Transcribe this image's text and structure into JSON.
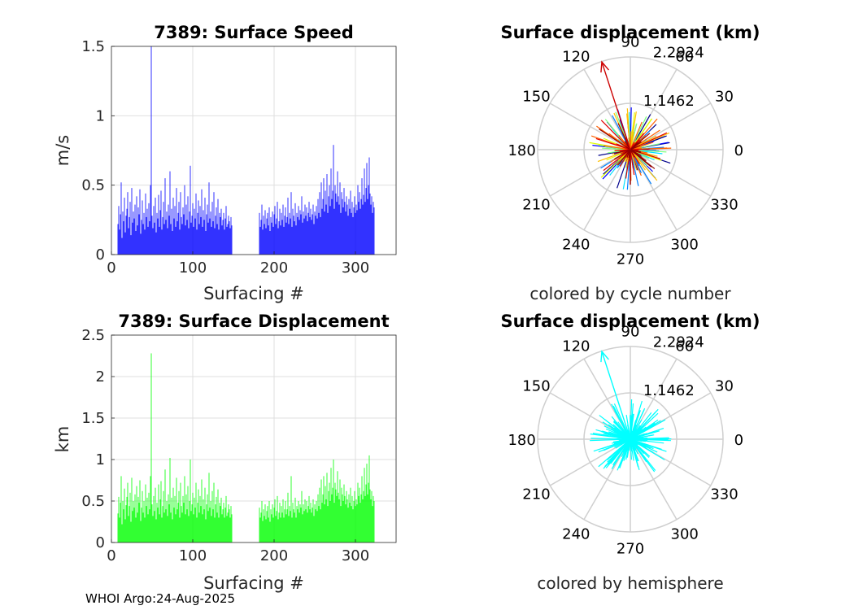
{
  "footer": "WHOI Argo:24-Aug-2025",
  "chart_data": [
    {
      "id": "speed",
      "type": "bar",
      "title": "7389: Surface Speed",
      "xlabel": "Surfacing #",
      "ylabel": "m/s",
      "xlim": [
        0,
        350
      ],
      "ylim": [
        0,
        1.5
      ],
      "xticks": [
        0,
        100,
        200,
        300
      ],
      "yticks": [
        0,
        0.5,
        1,
        1.5
      ],
      "ytick_labels": [
        "0",
        "0.5",
        "1",
        "1.5"
      ],
      "grid": true,
      "color": "#0000ff",
      "x_start": 8,
      "values": [
        0.22,
        0.35,
        0.18,
        0.29,
        0.52,
        0.12,
        0.31,
        0.24,
        0.41,
        0.16,
        0.28,
        0.33,
        0.45,
        0.19,
        0.27,
        0.38,
        0.14,
        0.48,
        0.23,
        0.31,
        0.26,
        0.36,
        0.17,
        0.42,
        0.21,
        0.34,
        0.29,
        0.47,
        0.15,
        0.25,
        0.39,
        0.22,
        0.3,
        0.18,
        0.44,
        0.27,
        0.33,
        0.2,
        0.37,
        0.24,
        0.5,
        1.5,
        0.28,
        0.19,
        0.35,
        0.23,
        0.41,
        0.16,
        0.3,
        0.26,
        0.43,
        0.2,
        0.32,
        0.46,
        0.18,
        0.27,
        0.38,
        0.22,
        0.55,
        0.25,
        0.31,
        0.19,
        0.36,
        0.28,
        0.6,
        0.22,
        0.33,
        0.17,
        0.41,
        0.26,
        0.35,
        0.2,
        0.48,
        0.24,
        0.3,
        0.38,
        0.18,
        0.45,
        0.27,
        0.22,
        0.34,
        0.29,
        0.5,
        0.21,
        0.36,
        0.25,
        0.42,
        0.19,
        0.31,
        0.64,
        0.23,
        0.28,
        0.37,
        0.2,
        0.33,
        0.26,
        0.44,
        0.18,
        0.3,
        0.39,
        0.22,
        0.35,
        0.27,
        0.47,
        0.2,
        0.32,
        0.25,
        0.41,
        0.17,
        0.29,
        0.36,
        0.23,
        0.52,
        0.26,
        0.31,
        0.2,
        0.38,
        0.24,
        0.45,
        0.19,
        0.28,
        0.34,
        0.22,
        0.4,
        0.18,
        0.3,
        0.27,
        0.33,
        0.21,
        0.25,
        0.3,
        0.18,
        0.26,
        0.35,
        0.2,
        0.22,
        0.28,
        0.24,
        0.19,
        0.27,
        0.21
      ],
      "x_start2": 182,
      "values2": [
        0.3,
        0.2,
        0.25,
        0.36,
        0.18,
        0.28,
        0.22,
        0.32,
        0.19,
        0.26,
        0.3,
        0.21,
        0.34,
        0.17,
        0.27,
        0.23,
        0.31,
        0.2,
        0.29,
        0.35,
        0.22,
        0.26,
        0.38,
        0.19,
        0.24,
        0.33,
        0.21,
        0.3,
        0.25,
        0.36,
        0.2,
        0.28,
        0.34,
        0.23,
        0.27,
        0.41,
        0.22,
        0.3,
        0.26,
        0.45,
        0.2,
        0.33,
        0.28,
        0.24,
        0.37,
        0.21,
        0.3,
        0.27,
        0.35,
        0.25,
        0.32,
        0.29,
        0.42,
        0.23,
        0.31,
        0.26,
        0.36,
        0.28,
        0.34,
        0.24,
        0.3,
        0.38,
        0.27,
        0.33,
        0.25,
        0.29,
        0.36,
        0.22,
        0.31,
        0.28,
        0.35,
        0.26,
        0.4,
        0.3,
        0.45,
        0.27,
        0.52,
        0.33,
        0.4,
        0.55,
        0.31,
        0.46,
        0.36,
        0.58,
        0.3,
        0.42,
        0.5,
        0.35,
        0.62,
        0.4,
        0.46,
        0.79,
        0.33,
        0.5,
        0.44,
        0.38,
        0.6,
        0.42,
        0.36,
        0.52,
        0.3,
        0.45,
        0.4,
        0.34,
        0.48,
        0.38,
        0.31,
        0.42,
        0.36,
        0.28,
        0.4,
        0.33,
        0.46,
        0.3,
        0.38,
        0.27,
        0.34,
        0.42,
        0.3,
        0.36,
        0.32,
        0.5,
        0.38,
        0.45,
        0.33,
        0.4,
        0.55,
        0.36,
        0.43,
        0.62,
        0.38,
        0.48,
        0.66,
        0.4,
        0.5,
        0.7,
        0.44,
        0.36,
        0.42,
        0.3,
        0.38,
        0.34
      ]
    },
    {
      "id": "displacement",
      "type": "bar",
      "title": "7389: Surface Displacement",
      "xlabel": "Surfacing #",
      "ylabel": "km",
      "xlim": [
        0,
        350
      ],
      "ylim": [
        0,
        2.5
      ],
      "xticks": [
        0,
        100,
        200,
        300
      ],
      "yticks": [
        0,
        0.5,
        1,
        1.5,
        2,
        2.5
      ],
      "ytick_labels": [
        "0",
        "0.5",
        "1",
        "1.5",
        "2",
        "2.5"
      ],
      "grid": true,
      "color": "#00ff00",
      "x_start": 8,
      "values": [
        0.35,
        0.55,
        0.3,
        0.48,
        0.8,
        0.22,
        0.5,
        0.4,
        0.65,
        0.28,
        0.45,
        0.55,
        0.72,
        0.32,
        0.44,
        0.6,
        0.25,
        0.78,
        0.38,
        0.5,
        0.42,
        0.58,
        0.3,
        0.68,
        0.36,
        0.55,
        0.48,
        0.75,
        0.26,
        0.42,
        0.62,
        0.36,
        0.5,
        0.3,
        0.7,
        0.44,
        0.54,
        0.34,
        0.6,
        0.4,
        0.8,
        2.28,
        0.46,
        0.32,
        0.56,
        0.38,
        0.66,
        0.28,
        0.48,
        0.42,
        0.7,
        0.34,
        0.52,
        0.74,
        0.3,
        0.44,
        0.62,
        0.36,
        0.88,
        0.4,
        0.5,
        0.32,
        0.58,
        0.46,
        1.02,
        0.36,
        0.54,
        0.28,
        0.66,
        0.42,
        0.56,
        0.34,
        0.78,
        0.4,
        0.48,
        0.62,
        0.3,
        0.72,
        0.44,
        0.36,
        0.56,
        0.48,
        0.8,
        0.34,
        0.58,
        0.4,
        0.68,
        0.32,
        0.5,
        1.0,
        0.38,
        0.46,
        0.6,
        0.34,
        0.54,
        0.42,
        0.72,
        0.3,
        0.48,
        0.64,
        0.36,
        0.56,
        0.44,
        0.76,
        0.34,
        0.52,
        0.4,
        0.66,
        0.28,
        0.46,
        0.58,
        0.38,
        0.84,
        0.42,
        0.5,
        0.32,
        0.62,
        0.4,
        0.72,
        0.3,
        0.46,
        0.55,
        0.36,
        0.64,
        0.3,
        0.48,
        0.44,
        0.54,
        0.34,
        0.4,
        0.48,
        0.3,
        0.42,
        0.56,
        0.32,
        0.36,
        0.46,
        0.4,
        0.3,
        0.44,
        0.34
      ],
      "x_start2": 182,
      "values2": [
        0.42,
        0.3,
        0.36,
        0.5,
        0.26,
        0.4,
        0.32,
        0.46,
        0.28,
        0.38,
        0.44,
        0.3,
        0.5,
        0.25,
        0.4,
        0.34,
        0.46,
        0.3,
        0.42,
        0.52,
        0.32,
        0.38,
        0.56,
        0.28,
        0.36,
        0.48,
        0.3,
        0.44,
        0.36,
        0.52,
        0.3,
        0.4,
        0.5,
        0.34,
        0.4,
        0.6,
        0.32,
        0.44,
        0.38,
        0.8,
        0.3,
        0.48,
        0.4,
        0.36,
        0.54,
        0.3,
        0.44,
        0.4,
        0.5,
        0.36,
        0.46,
        0.42,
        0.62,
        0.34,
        0.46,
        0.38,
        0.52,
        0.4,
        0.5,
        0.36,
        0.44,
        0.56,
        0.4,
        0.48,
        0.36,
        0.42,
        0.52,
        0.32,
        0.46,
        0.4,
        0.5,
        0.38,
        0.58,
        0.44,
        0.66,
        0.4,
        0.76,
        0.48,
        0.58,
        0.8,
        0.46,
        0.68,
        0.52,
        0.84,
        0.44,
        0.62,
        0.72,
        0.5,
        0.9,
        0.58,
        0.66,
        1.0,
        0.48,
        0.72,
        0.64,
        0.56,
        0.86,
        0.6,
        0.52,
        0.76,
        0.44,
        0.66,
        0.58,
        0.5,
        0.7,
        0.56,
        0.46,
        0.62,
        0.52,
        0.42,
        0.58,
        0.48,
        0.66,
        0.44,
        0.56,
        0.4,
        0.5,
        0.62,
        0.44,
        0.52,
        0.46,
        0.72,
        0.56,
        0.66,
        0.48,
        0.58,
        0.8,
        0.52,
        0.62,
        0.9,
        0.56,
        0.7,
        0.95,
        0.58,
        0.72,
        1.05,
        0.64,
        0.52,
        0.62,
        0.44,
        0.56,
        0.5
      ]
    },
    {
      "id": "polar1",
      "type": "scatter",
      "title": "Surface displacement (km)",
      "note": "colored by cycle number",
      "rlim": [
        0,
        2.2924
      ],
      "ring_labels": [
        "1.1462",
        "2.2924"
      ],
      "angle_labels": [
        "0",
        "30",
        "60",
        "90",
        "120",
        "150",
        "180",
        "210",
        "240",
        "270",
        "300",
        "330"
      ],
      "colormap": [
        "#00008b",
        "#0000ff",
        "#0080ff",
        "#00e0ff",
        "#80ff80",
        "#e0ff00",
        "#ffc000",
        "#ff6000",
        "#e00000",
        "#900000"
      ],
      "peak_vector": {
        "angle_deg": 108,
        "r": 2.28,
        "color": "#cc0000"
      }
    },
    {
      "id": "polar2",
      "type": "scatter",
      "title": "Surface displacement (km)",
      "note": "colored by hemisphere",
      "rlim": [
        0,
        2.2924
      ],
      "ring_labels": [
        "1.1462",
        "2.2924"
      ],
      "angle_labels": [
        "0",
        "30",
        "60",
        "90",
        "120",
        "150",
        "180",
        "210",
        "240",
        "270",
        "300",
        "330"
      ],
      "color": "#00ffff",
      "peak_vector": {
        "angle_deg": 108,
        "r": 2.28,
        "color": "#00ffff"
      }
    }
  ]
}
